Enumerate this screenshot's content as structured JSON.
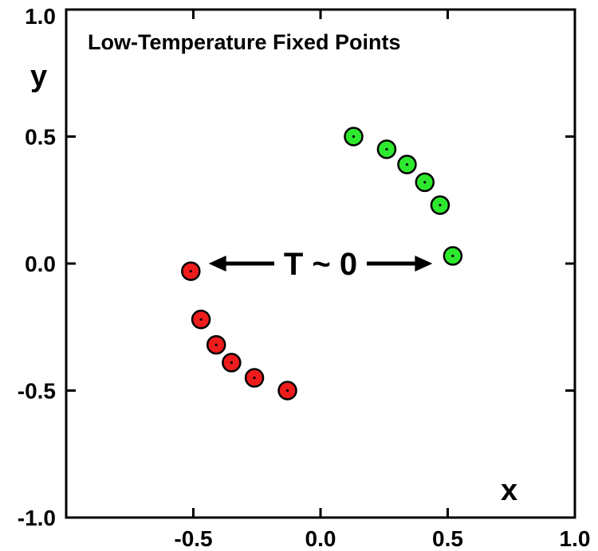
{
  "chart_data": {
    "type": "scatter",
    "title": "Low-Temperature Fixed Points",
    "xlabel": "x",
    "ylabel": "y",
    "xlim": [
      -1.0,
      1.0
    ],
    "ylim": [
      -1.0,
      1.0
    ],
    "x_ticks": [
      -0.5,
      0.0,
      0.5,
      1.0
    ],
    "x_tick_labels": [
      "-0.5",
      "0.0",
      "0.5",
      "1.0"
    ],
    "y_ticks": [
      -1.0,
      -0.5,
      0.0,
      0.5,
      1.0
    ],
    "y_tick_labels": [
      "-1.0",
      "-0.5",
      "0.0",
      "0.5",
      "1.0"
    ],
    "grid": false,
    "annotation": {
      "text": "T ~ 0",
      "arrow_left_to": [
        -0.44,
        0.0
      ],
      "arrow_right_to": [
        0.44,
        0.0
      ],
      "text_at": [
        0.0,
        0.0
      ]
    },
    "series": [
      {
        "color": "#2ee82e",
        "points": [
          {
            "x": 0.13,
            "y": 0.5
          },
          {
            "x": 0.26,
            "y": 0.45
          },
          {
            "x": 0.34,
            "y": 0.39
          },
          {
            "x": 0.41,
            "y": 0.32
          },
          {
            "x": 0.47,
            "y": 0.23
          },
          {
            "x": 0.52,
            "y": 0.03
          }
        ]
      },
      {
        "color": "#ee1c1c",
        "points": [
          {
            "x": -0.51,
            "y": -0.03
          },
          {
            "x": -0.47,
            "y": -0.22
          },
          {
            "x": -0.41,
            "y": -0.32
          },
          {
            "x": -0.35,
            "y": -0.39
          },
          {
            "x": -0.26,
            "y": -0.45
          },
          {
            "x": -0.13,
            "y": -0.5
          }
        ]
      }
    ]
  }
}
